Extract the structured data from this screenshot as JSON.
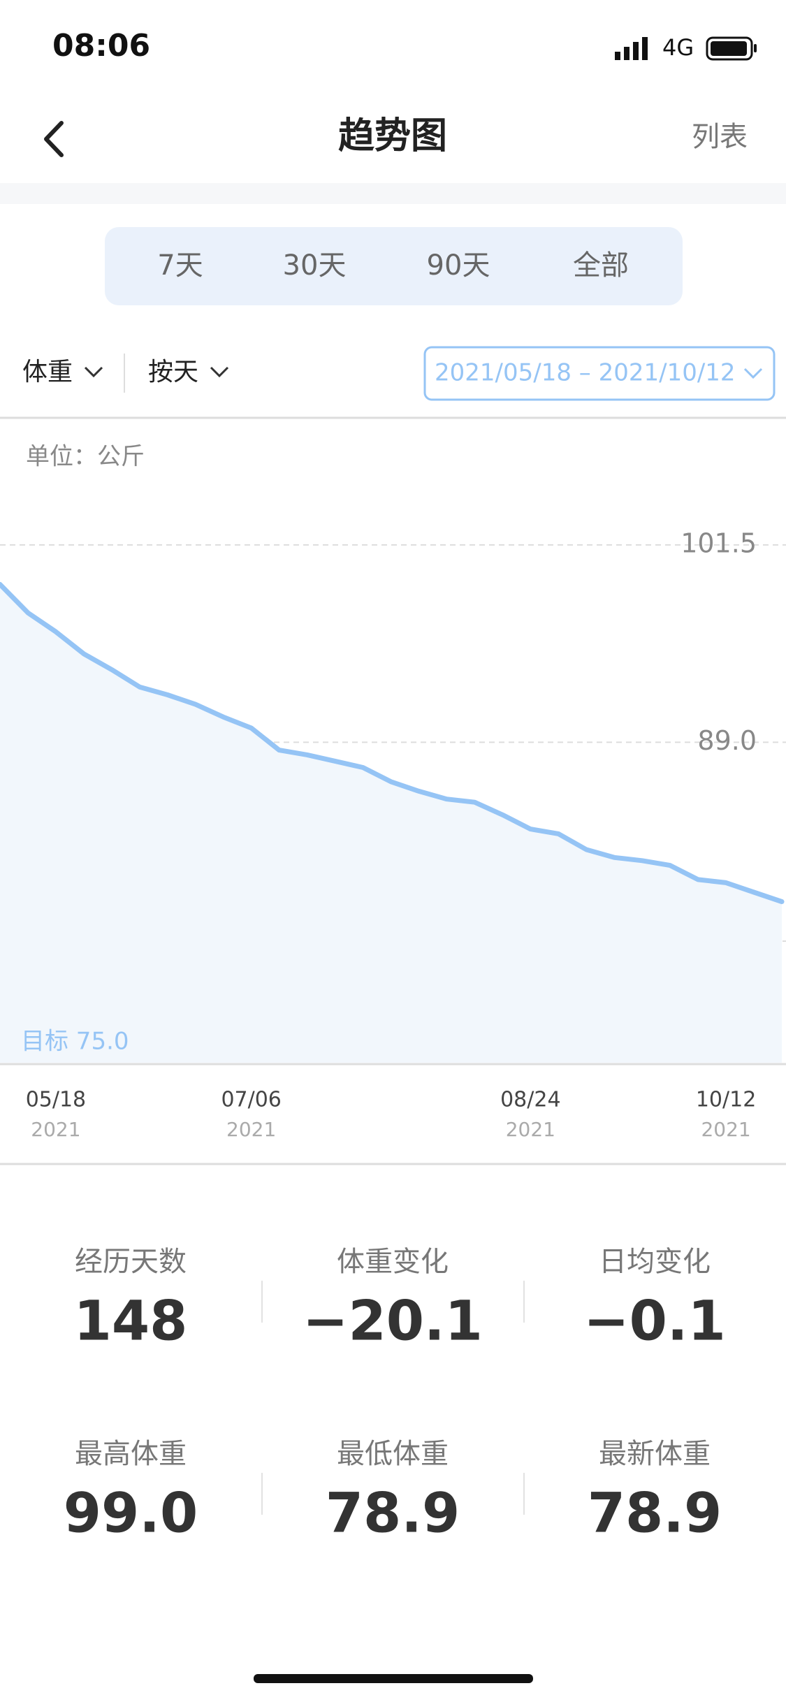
{
  "status_bar": {
    "time": "08:06",
    "network": "4G"
  },
  "nav": {
    "title": "趋势图",
    "action": "列表"
  },
  "range_tabs": [
    "7天",
    "30天",
    "90天",
    "全部"
  ],
  "filters": {
    "metric": "体重",
    "granularity": "按天",
    "date_range": "2021/05/18 – 2021/10/12"
  },
  "chart_data": {
    "type": "line",
    "unit_label": "单位：公斤",
    "target_label": "目标 75.0",
    "categories": [
      null,
      null,
      "05/18",
      null,
      null,
      null,
      null,
      null,
      null,
      "07/06",
      null,
      null,
      null,
      null,
      null,
      null,
      null,
      null,
      null,
      "08/24",
      null,
      null,
      null,
      null,
      null,
      null,
      "10/12",
      null,
      null
    ],
    "category_years": [
      null,
      null,
      "2021",
      null,
      null,
      null,
      null,
      null,
      null,
      "2021",
      null,
      null,
      null,
      null,
      null,
      null,
      null,
      null,
      null,
      "2021",
      null,
      null,
      null,
      null,
      null,
      null,
      "2021",
      null,
      null
    ],
    "values": [
      99.0,
      97.2,
      96.0,
      94.6,
      93.6,
      92.5,
      92.0,
      91.4,
      90.6,
      89.9,
      88.5,
      88.2,
      87.8,
      87.4,
      86.5,
      85.9,
      85.4,
      85.2,
      84.4,
      83.5,
      83.2,
      82.2,
      81.7,
      81.5,
      81.2,
      80.3,
      80.1,
      79.5,
      78.9
    ],
    "color": "#95c4f5",
    "ylim": [
      68.7,
      105.7
    ],
    "yticks": [
      101.5,
      {
        "value": 89,
        "label": "89.0"
      },
      76.4
    ],
    "grid": true
  },
  "stats": [
    {
      "label": "经历天数",
      "value": "148"
    },
    {
      "label": "体重变化",
      "value": "−20.1"
    },
    {
      "label": "日均变化",
      "value": "−0.1"
    },
    {
      "label": "最高体重",
      "value": "99.0"
    },
    {
      "label": "最低体重",
      "value": "78.9"
    },
    {
      "label": "最新体重",
      "value": "78.9"
    }
  ]
}
